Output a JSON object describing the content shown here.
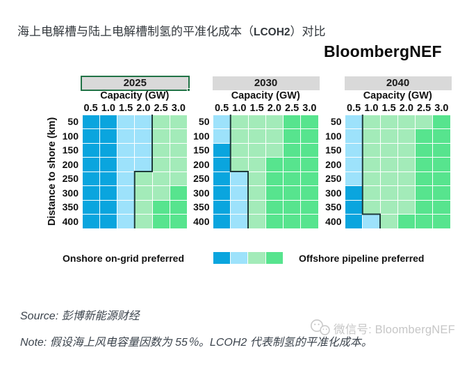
{
  "title": {
    "prefix": "海上电解槽与陆上电解槽制氢的平准化成本（",
    "code": "LCOH2",
    "suffix": "）对比"
  },
  "logo_text": "BloombergNEF",
  "chart_data": {
    "type": "heatmap",
    "x_axis_label": "Capacity (GW)",
    "y_axis_label": "Distance to shore (km)",
    "x_ticks": [
      "0.5",
      "1.0",
      "1.5",
      "2.0",
      "2.5",
      "3.0"
    ],
    "y_ticks": [
      "50",
      "100",
      "150",
      "200",
      "250",
      "300",
      "350",
      "400"
    ],
    "palette": {
      "DB": "#0aa5de",
      "LB": "#9de2fb",
      "LG": "#a3ebb9",
      "MG": "#57e48e"
    },
    "palette_meaning": {
      "DB": "onshore on-grid strongly preferred",
      "LB": "onshore on-grid preferred",
      "LG": "offshore pipeline preferred",
      "MG": "offshore pipeline strongly preferred"
    },
    "panels": [
      {
        "year": "2025",
        "selected": true,
        "cells": [
          [
            "DB",
            "DB",
            "LB",
            "LB",
            "LG",
            "LG"
          ],
          [
            "DB",
            "DB",
            "LB",
            "LB",
            "LG",
            "LG"
          ],
          [
            "DB",
            "DB",
            "LB",
            "LB",
            "LG",
            "LG"
          ],
          [
            "DB",
            "DB",
            "LB",
            "LB",
            "LG",
            "LG"
          ],
          [
            "DB",
            "DB",
            "LB",
            "LG",
            "LG",
            "LG"
          ],
          [
            "DB",
            "DB",
            "LB",
            "LG",
            "LG",
            "MG"
          ],
          [
            "DB",
            "DB",
            "LB",
            "LG",
            "MG",
            "MG"
          ],
          [
            "DB",
            "DB",
            "LB",
            "LG",
            "MG",
            "MG"
          ]
        ],
        "boundary_cols_right_edge": [
          4,
          4,
          4,
          4,
          3,
          3,
          3,
          3
        ]
      },
      {
        "year": "2030",
        "selected": false,
        "cells": [
          [
            "LB",
            "LG",
            "LG",
            "LG",
            "MG",
            "MG"
          ],
          [
            "LB",
            "LG",
            "LG",
            "LG",
            "MG",
            "MG"
          ],
          [
            "DB",
            "LG",
            "LG",
            "LG",
            "MG",
            "MG"
          ],
          [
            "DB",
            "LG",
            "LG",
            "MG",
            "MG",
            "MG"
          ],
          [
            "DB",
            "LB",
            "LG",
            "MG",
            "MG",
            "MG"
          ],
          [
            "DB",
            "LB",
            "LG",
            "MG",
            "MG",
            "MG"
          ],
          [
            "DB",
            "LB",
            "LG",
            "MG",
            "MG",
            "MG"
          ],
          [
            "DB",
            "LB",
            "LG",
            "MG",
            "MG",
            "MG"
          ]
        ],
        "boundary_cols_right_edge": [
          1,
          1,
          1,
          1,
          2,
          2,
          2,
          2
        ]
      },
      {
        "year": "2040",
        "selected": false,
        "cells": [
          [
            "LB",
            "LG",
            "LG",
            "LG",
            "LG",
            "MG"
          ],
          [
            "LB",
            "LG",
            "LG",
            "LG",
            "MG",
            "MG"
          ],
          [
            "LB",
            "LG",
            "LG",
            "LG",
            "MG",
            "MG"
          ],
          [
            "LB",
            "LG",
            "LG",
            "LG",
            "MG",
            "MG"
          ],
          [
            "LB",
            "LG",
            "LG",
            "LG",
            "MG",
            "MG"
          ],
          [
            "DB",
            "LG",
            "LG",
            "LG",
            "MG",
            "MG"
          ],
          [
            "DB",
            "LG",
            "LG",
            "LG",
            "MG",
            "MG"
          ],
          [
            "DB",
            "LB",
            "LG",
            "MG",
            "MG",
            "MG"
          ]
        ],
        "boundary_cols_right_edge": [
          1,
          1,
          1,
          1,
          1,
          1,
          1,
          2
        ]
      }
    ],
    "legend": {
      "left_label": "Onshore on-grid preferred",
      "right_label": "Offshore pipeline preferred",
      "swatches": [
        "DB",
        "LB",
        "LG",
        "MG"
      ]
    },
    "boundary_line_color": "#1f3b3b",
    "header_band_color": "#d9d9d9",
    "selection_border_color": "#217346"
  },
  "footer": {
    "source": "Source: 彭博新能源财经",
    "note": "Note: 假设海上风电容量因数为 55％。LCOH2 代表制氢的平准化成本。"
  },
  "watermark": {
    "text": "微信号: BloombergNEF"
  }
}
